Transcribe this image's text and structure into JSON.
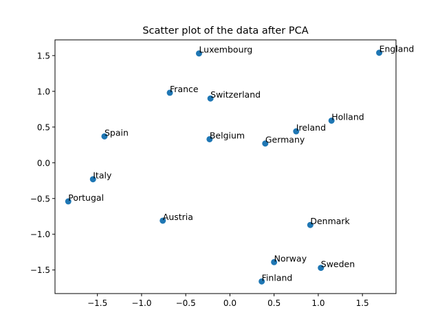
{
  "chart_data": {
    "type": "scatter",
    "title": "Scatter plot of the data after PCA",
    "xlabel": "",
    "ylabel": "",
    "xlim": [
      -1.98,
      1.88
    ],
    "ylim": [
      -1.83,
      1.72
    ],
    "xticks": [
      -1.5,
      -1.0,
      -0.5,
      0.0,
      0.5,
      1.0,
      1.5
    ],
    "yticks": [
      -1.5,
      -1.0,
      -0.5,
      0.0,
      0.5,
      1.0,
      1.5
    ],
    "xtick_labels": [
      "−1.5",
      "−1.0",
      "−0.5",
      "0.0",
      "0.5",
      "1.0",
      "1.5"
    ],
    "ytick_labels": [
      "−1.5",
      "−1.0",
      "−0.5",
      "0.0",
      "0.5",
      "1.0",
      "1.5"
    ],
    "grid": false,
    "color": "#1f77b4",
    "points": [
      {
        "label": "England",
        "x": 1.69,
        "y": 1.54
      },
      {
        "label": "Luxembourg",
        "x": -0.35,
        "y": 1.53
      },
      {
        "label": "France",
        "x": -0.68,
        "y": 0.98
      },
      {
        "label": "Switzerland",
        "x": -0.22,
        "y": 0.9
      },
      {
        "label": "Holland",
        "x": 1.15,
        "y": 0.59
      },
      {
        "label": "Ireland",
        "x": 0.75,
        "y": 0.44
      },
      {
        "label": "Spain",
        "x": -1.42,
        "y": 0.37
      },
      {
        "label": "Belgium",
        "x": -0.23,
        "y": 0.33
      },
      {
        "label": "Germany",
        "x": 0.4,
        "y": 0.27
      },
      {
        "label": "Italy",
        "x": -1.55,
        "y": -0.23
      },
      {
        "label": "Portugal",
        "x": -1.83,
        "y": -0.54
      },
      {
        "label": "Austria",
        "x": -0.76,
        "y": -0.81
      },
      {
        "label": "Denmark",
        "x": 0.91,
        "y": -0.87
      },
      {
        "label": "Norway",
        "x": 0.5,
        "y": -1.39
      },
      {
        "label": "Sweden",
        "x": 1.03,
        "y": -1.47
      },
      {
        "label": "Finland",
        "x": 0.36,
        "y": -1.66
      }
    ]
  }
}
